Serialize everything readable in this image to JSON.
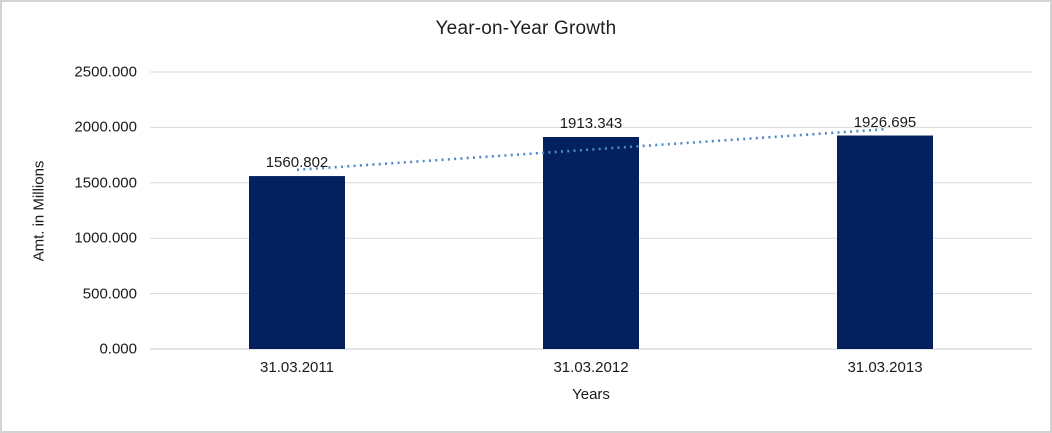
{
  "chart_data": {
    "type": "bar",
    "title": "Year-on-Year Growth",
    "xlabel": "Years",
    "ylabel": "Amt. in Millions",
    "categories": [
      "31.03.2011",
      "31.03.2012",
      "31.03.2013"
    ],
    "values": [
      1560.802,
      1913.343,
      1926.695
    ],
    "data_labels": [
      "1560.802",
      "1913.343",
      "1926.695"
    ],
    "ylim": [
      0,
      2500
    ],
    "ytick_values": [
      0,
      500,
      1000,
      1500,
      2000,
      2500
    ],
    "ytick_labels": [
      "0.000",
      "500.000",
      "1000.000",
      "1500.000",
      "2000.000",
      "2500.000"
    ],
    "grid": true,
    "legend": "none",
    "trendline": {
      "type": "linear",
      "style": "dotted"
    }
  },
  "colors": {
    "bar": "#02215e",
    "trendline": "#4e8ac9",
    "gridline": "#d9d9d9",
    "axis_line": "#c9c9c9",
    "text": "#1a1a1a",
    "frame_border": "#d3d3d3",
    "background": "#ffffff"
  }
}
